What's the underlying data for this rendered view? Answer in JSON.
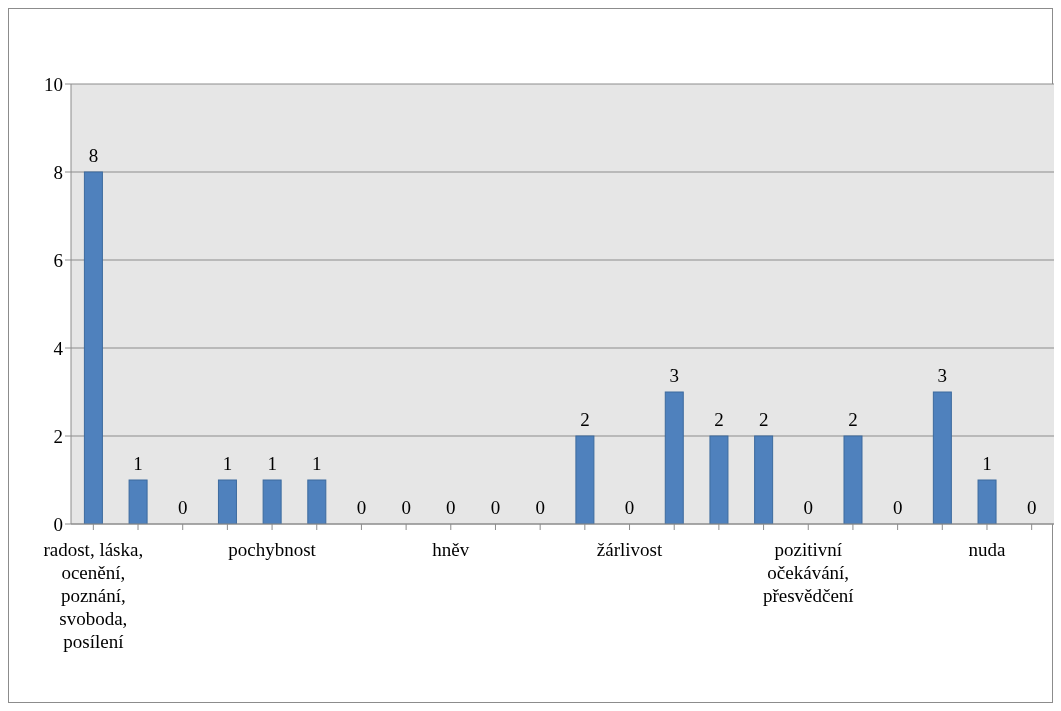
{
  "chart_data": {
    "type": "bar",
    "categories": [
      "radost, láska, ocenění, poznání, svoboda, posílení",
      null,
      null,
      null,
      "pochybnost",
      null,
      null,
      null,
      "hněv",
      null,
      null,
      null,
      "žárlivost",
      null,
      null,
      null,
      "pozitivní očekávání, přesvědčení",
      null,
      null,
      null,
      "nuda",
      null
    ],
    "values": [
      8,
      1,
      0,
      1,
      1,
      1,
      0,
      0,
      0,
      0,
      0,
      2,
      0,
      3,
      2,
      2,
      0,
      2,
      0,
      3,
      1,
      0
    ],
    "color": "#4f81bd",
    "ylim": [
      0,
      10
    ],
    "yticks": [
      0,
      2,
      4,
      6,
      8,
      10
    ],
    "grid": "y",
    "data_labels": true
  }
}
